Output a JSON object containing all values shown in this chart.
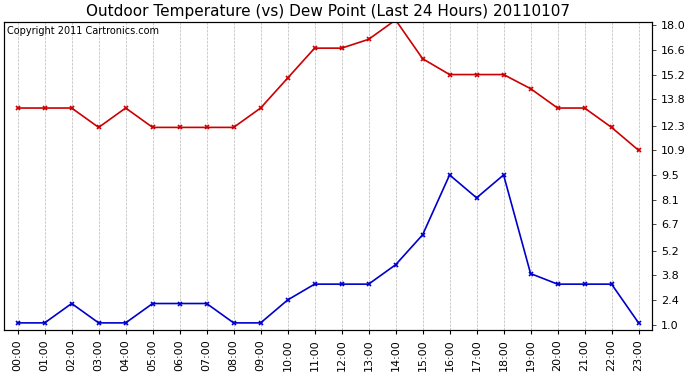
{
  "title": "Outdoor Temperature (vs) Dew Point (Last 24 Hours) 20110107",
  "copyright": "Copyright 2011 Cartronics.com",
  "hours": [
    "00:00",
    "01:00",
    "02:00",
    "03:00",
    "04:00",
    "05:00",
    "06:00",
    "07:00",
    "08:00",
    "09:00",
    "10:00",
    "11:00",
    "12:00",
    "13:00",
    "14:00",
    "15:00",
    "16:00",
    "17:00",
    "18:00",
    "19:00",
    "20:00",
    "21:00",
    "22:00",
    "23:00"
  ],
  "temp_data": [
    13.3,
    13.3,
    13.3,
    12.2,
    13.3,
    12.2,
    12.2,
    12.2,
    12.2,
    13.3,
    15.0,
    16.7,
    16.7,
    17.2,
    18.3,
    16.1,
    15.2,
    15.2,
    15.2,
    14.4,
    13.3,
    13.3,
    12.2,
    10.9
  ],
  "dew_data": [
    1.1,
    1.1,
    2.2,
    1.1,
    1.1,
    2.2,
    2.2,
    2.2,
    1.1,
    1.1,
    2.4,
    3.3,
    3.3,
    3.3,
    4.4,
    6.1,
    9.5,
    8.2,
    9.5,
    3.9,
    3.3,
    3.3,
    3.3,
    1.1
  ],
  "temp_color": "#cc0000",
  "dew_color": "#0000cc",
  "background_color": "#ffffff",
  "grid_color": "#b0b0b0",
  "y_min": 1.0,
  "y_max": 18.0,
  "yticks": [
    18.0,
    16.6,
    15.2,
    13.8,
    12.3,
    10.9,
    9.5,
    8.1,
    6.7,
    5.2,
    3.8,
    2.4,
    1.0
  ],
  "title_fontsize": 11,
  "copyright_fontsize": 7,
  "tick_fontsize": 8
}
